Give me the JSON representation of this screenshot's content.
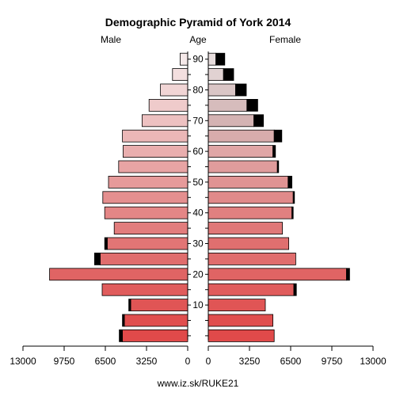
{
  "chart_data": {
    "type": "bar",
    "title": "Demographic Pyramid of York 2014",
    "left_label": "Male",
    "center_label": "Age",
    "right_label": "Female",
    "footer": "www.iz.sk/RUKE21",
    "x_ticks_left": [
      "13000",
      "9750",
      "6500",
      "3250",
      "0"
    ],
    "x_ticks_right": [
      "0",
      "3250",
      "6500",
      "9750",
      "13000"
    ],
    "xlim": [
      0,
      13000
    ],
    "age_ticks": [
      "10",
      "20",
      "30",
      "40",
      "50",
      "60",
      "70",
      "80",
      "90"
    ],
    "age_groups": [
      "0-4",
      "5-9",
      "10-14",
      "15-19",
      "20-24",
      "25-29",
      "30-34",
      "35-39",
      "40-44",
      "45-49",
      "50-54",
      "55-59",
      "60-64",
      "65-69",
      "70-74",
      "75-79",
      "80-84",
      "85-89",
      "90+"
    ],
    "male_base": [
      5150,
      5000,
      4500,
      6750,
      10900,
      6900,
      6350,
      5800,
      6550,
      6700,
      6250,
      5450,
      5100,
      5150,
      3600,
      3050,
      2150,
      1200,
      600
    ],
    "male_extra": [
      250,
      150,
      150,
      0,
      0,
      450,
      200,
      0,
      0,
      0,
      0,
      0,
      0,
      0,
      0,
      0,
      0,
      0,
      0
    ],
    "female_base": [
      5200,
      5100,
      4500,
      6750,
      10900,
      6900,
      6350,
      5850,
      6600,
      6700,
      6300,
      5450,
      5100,
      5200,
      3600,
      3050,
      2150,
      1200,
      600
    ],
    "female_extra": [
      0,
      0,
      0,
      200,
      250,
      0,
      0,
      0,
      100,
      100,
      300,
      100,
      200,
      600,
      750,
      850,
      850,
      800,
      700
    ],
    "male_colors": [
      "#e04a4a",
      "#e04e4e",
      "#e05555",
      "#e05c5c",
      "#e06464",
      "#e06d6d",
      "#e27575",
      "#e27d7d",
      "#e48686",
      "#e48f8f",
      "#e69a9a",
      "#e8a4a4",
      "#e9aeae",
      "#ebb7b7",
      "#edc1c1",
      "#efcbcb",
      "#f1d5d5",
      "#f3dfdf",
      "#f5e9e9"
    ],
    "female_colors": [
      "#e04a4a",
      "#e04e4e",
      "#e05555",
      "#e05c5c",
      "#e06464",
      "#e06d6d",
      "#e06f6f",
      "#e07878",
      "#e08080",
      "#e08a8a",
      "#e09393",
      "#e09c9c",
      "#e0a6a6",
      "#d8acac",
      "#d4b3b3",
      "#d6bcbc",
      "#dac6c6",
      "#e1d2d2",
      "#e7dddd"
    ],
    "extra_color": "#000000"
  }
}
